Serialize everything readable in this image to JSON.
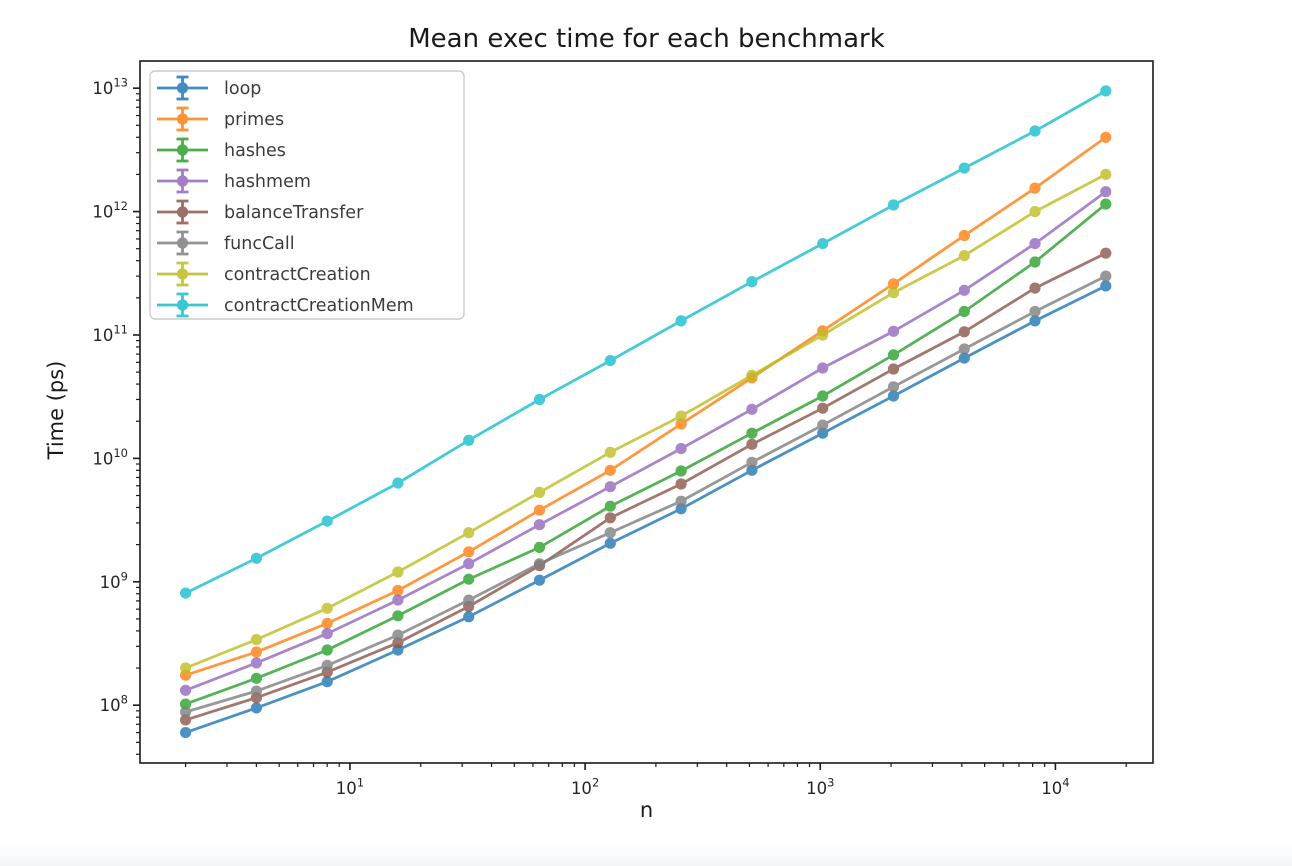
{
  "figure": {
    "background": "#ffffff"
  },
  "chart_data": {
    "type": "line",
    "title": "Mean exec time for each benchmark",
    "xlabel": "n",
    "ylabel": "Time (ps)",
    "x_scale": "log",
    "y_scale": "log",
    "grid": false,
    "legend_position": "upper left",
    "marker": "circle-errorbar",
    "xlim": [
      1.28,
      26000
    ],
    "ylim": [
      34000000.0,
      16600000000000.0
    ],
    "x_major_tick_exponents": [
      1,
      2,
      3,
      4
    ],
    "y_major_tick_exponents": [
      8,
      9,
      10,
      11,
      12,
      13
    ],
    "x": [
      2,
      4,
      8,
      16,
      32,
      64,
      128,
      256,
      512,
      1024,
      2048,
      4096,
      8192,
      16384
    ],
    "series": [
      {
        "name": "loop",
        "color": "#1f77b4",
        "values": [
          60000000.0,
          95000000.0,
          155000000.0,
          280000000.0,
          520000000.0,
          1030000000.0,
          2050000000.0,
          3900000000.0,
          8000000000.0,
          16000000000.0,
          32000000000.0,
          65000000000.0,
          130000000000.0,
          250000000000.0
        ]
      },
      {
        "name": "primes",
        "color": "#ff7f0e",
        "values": [
          175000000.0,
          270000000.0,
          460000000.0,
          850000000.0,
          1750000000.0,
          3800000000.0,
          8000000000.0,
          19000000000.0,
          45000000000.0,
          108000000000.0,
          260000000000.0,
          640000000000.0,
          1550000000000.0,
          4000000000000.0
        ]
      },
      {
        "name": "hashes",
        "color": "#2ca02c",
        "values": [
          102000000.0,
          165000000.0,
          280000000.0,
          530000000.0,
          1050000000.0,
          1900000000.0,
          4100000000.0,
          7900000000.0,
          16000000000.0,
          32000000000.0,
          69000000000.0,
          155000000000.0,
          390000000000.0,
          1150000000000.0
        ]
      },
      {
        "name": "hashmem",
        "color": "#9467bd",
        "values": [
          132000000.0,
          220000000.0,
          380000000.0,
          710000000.0,
          1400000000.0,
          2900000000.0,
          5900000000.0,
          12000000000.0,
          25000000000.0,
          54000000000.0,
          107000000000.0,
          230000000000.0,
          550000000000.0,
          1450000000000.0
        ]
      },
      {
        "name": "balanceTransfer",
        "color": "#8c564b",
        "values": [
          76000000.0,
          115000000.0,
          185000000.0,
          320000000.0,
          630000000.0,
          1350000000.0,
          3300000000.0,
          6200000000.0,
          13000000000.0,
          25500000000.0,
          53000000000.0,
          106000000000.0,
          240000000000.0,
          460000000000.0
        ]
      },
      {
        "name": "funcCall",
        "color": "#7f7f7f",
        "values": [
          88000000.0,
          130000000.0,
          210000000.0,
          370000000.0,
          710000000.0,
          1400000000.0,
          2500000000.0,
          4500000000.0,
          9300000000.0,
          18600000000.0,
          38000000000.0,
          77000000000.0,
          155000000000.0,
          300000000000.0
        ]
      },
      {
        "name": "contractCreation",
        "color": "#bcbd22",
        "values": [
          200000000.0,
          340000000.0,
          610000000.0,
          1200000000.0,
          2500000000.0,
          5300000000.0,
          11200000000.0,
          22000000000.0,
          47000000000.0,
          100000000000.0,
          220000000000.0,
          440000000000.0,
          1000000000000.0,
          2000000000000.0
        ]
      },
      {
        "name": "contractCreationMem",
        "color": "#17becf",
        "values": [
          810000000.0,
          1550000000.0,
          3100000000.0,
          6300000000.0,
          14000000000.0,
          30000000000.0,
          62000000000.0,
          130000000000.0,
          270000000000.0,
          550000000000.0,
          1130000000000.0,
          2250000000000.0,
          4500000000000.0,
          9500000000000.0
        ]
      }
    ]
  }
}
